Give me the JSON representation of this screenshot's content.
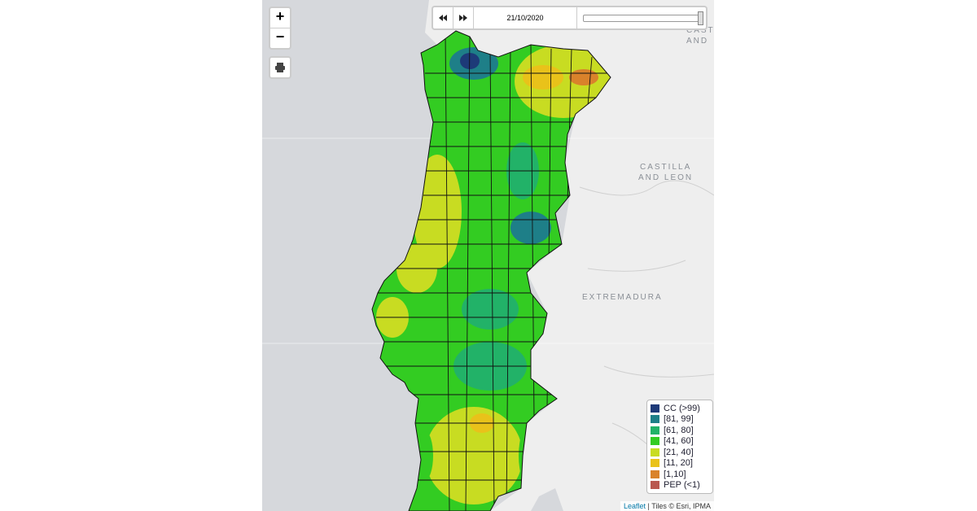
{
  "map": {
    "zoom_in": "+",
    "zoom_out": "−",
    "timeline": {
      "date": "21/10/2020"
    },
    "place_labels": {
      "castilla_cut_1": "CAST",
      "castilla_cut_2": "AND",
      "castilla_1": "CASTILLA",
      "castilla_2": "AND LEON",
      "extremadura": "EXTREMADURA"
    },
    "legend": [
      {
        "label": "CC (>99)",
        "color": "#1d3a78"
      },
      {
        "label": "[81, 99]",
        "color": "#1e7f88"
      },
      {
        "label": "[61, 80]",
        "color": "#22b268"
      },
      {
        "label": "[41, 60]",
        "color": "#33cc22"
      },
      {
        "label": "[21, 40]",
        "color": "#c8dc22"
      },
      {
        "label": "[11, 20]",
        "color": "#e9c21a"
      },
      {
        "label": "[1,10]",
        "color": "#d9822b"
      },
      {
        "label": "PEP (<1)",
        "color": "#b9584f"
      }
    ],
    "attribution": {
      "link": "Leaflet",
      "text": " | Tiles © Esri, IPMA"
    }
  }
}
